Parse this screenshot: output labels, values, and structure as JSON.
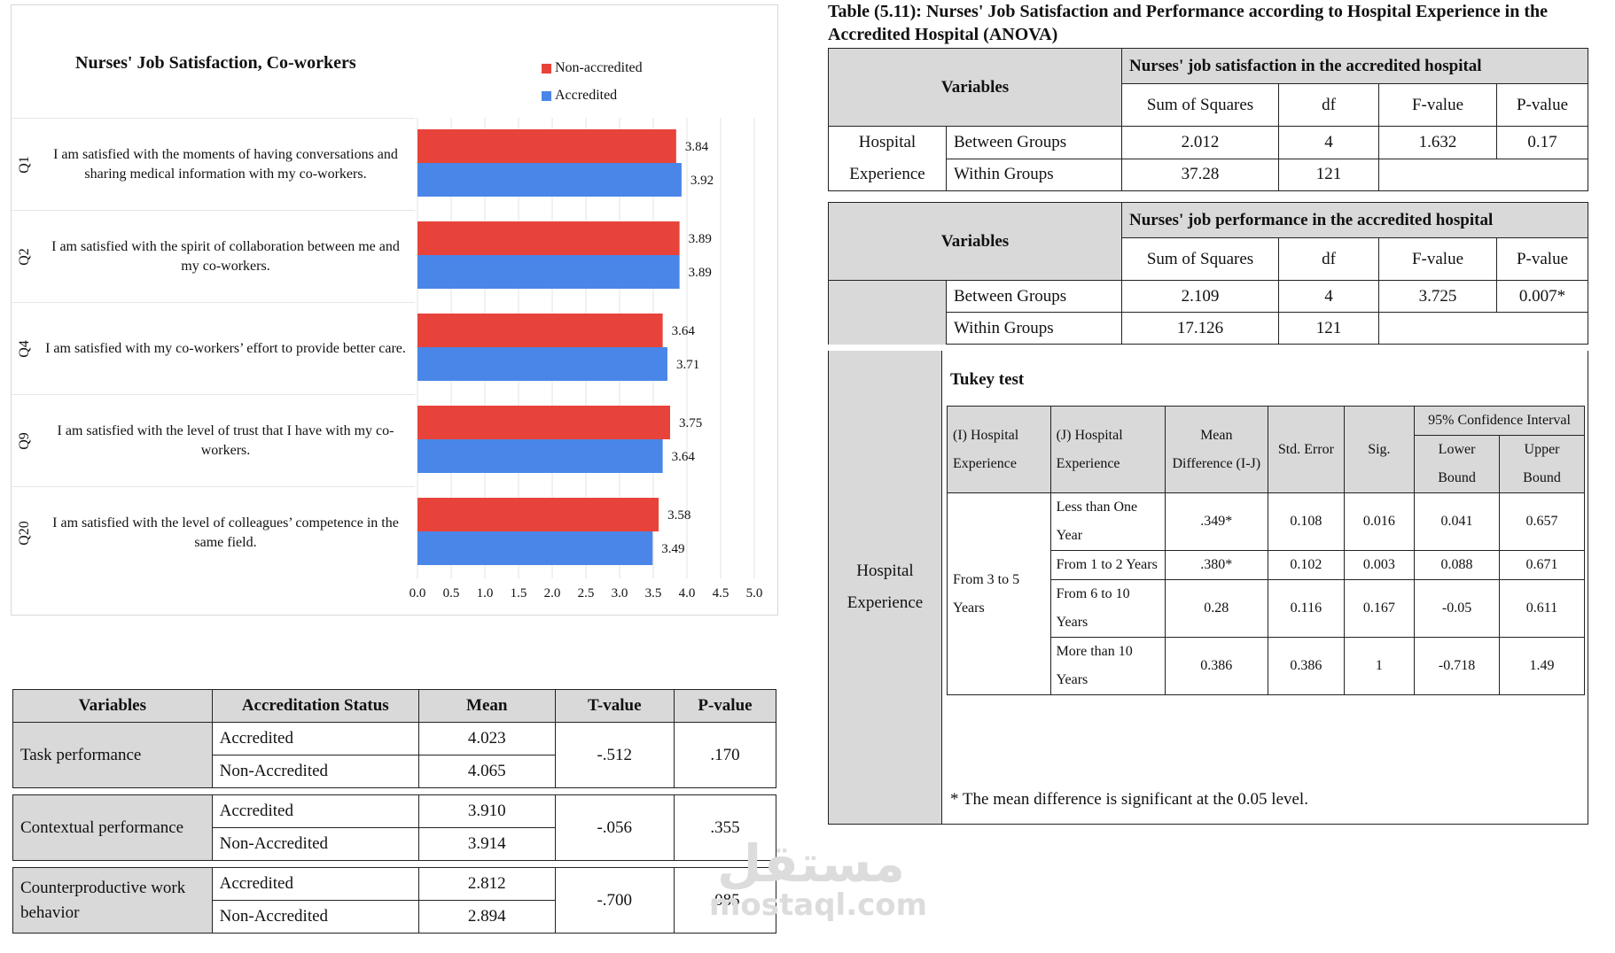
{
  "chart_data": {
    "type": "bar",
    "orientation": "horizontal",
    "title": "Nurses' Job Satisfaction, Co-workers",
    "categories": [
      "Q1",
      "Q2",
      "Q4",
      "Q9",
      "Q20"
    ],
    "category_texts": [
      "I am satisfied with the moments of having conversations and sharing medical information with my co-workers.",
      "I am satisfied with the spirit of collaboration between me and my co-workers.",
      "I am satisfied with my co-workers’ effort to provide better care.",
      "I am satisfied with the level of trust that I have with my co-workers.",
      "I am satisfied with the level of colleagues’ competence in the same field."
    ],
    "series": [
      {
        "name": "Non-accredited",
        "color": "#e8433a",
        "values": [
          3.84,
          3.89,
          3.64,
          3.75,
          3.58
        ],
        "labels": [
          "3.84",
          "3.89",
          "3.64",
          "3.75",
          "3.58"
        ]
      },
      {
        "name": "Accredited",
        "color": "#4a86e8",
        "values": [
          3.92,
          3.89,
          3.71,
          3.64,
          3.49
        ],
        "labels": [
          "3.92",
          "3.89",
          "3.71",
          "3.64",
          "3.49"
        ]
      }
    ],
    "xlim": [
      0,
      5
    ],
    "xticks": [
      "0.0",
      "0.5",
      "1.0",
      "1.5",
      "2.0",
      "2.5",
      "3.0",
      "3.5",
      "4.0",
      "4.5",
      "5.0"
    ],
    "legend_position": "top-right",
    "grid": true
  },
  "ttest": {
    "headers": [
      "Variables",
      "Accreditation Status",
      "Mean",
      "T-value",
      "P-value"
    ],
    "groups": [
      {
        "variable": "Task performance",
        "rows": [
          {
            "status": "Accredited",
            "mean": "4.023"
          },
          {
            "status": "Non-Accredited",
            "mean": "4.065"
          }
        ],
        "t": "-.512",
        "p": ".170"
      },
      {
        "variable": "Contextual performance",
        "rows": [
          {
            "status": "Accredited",
            "mean": "3.910"
          },
          {
            "status": "Non-Accredited",
            "mean": "3.914"
          }
        ],
        "t": "-.056",
        "p": ".355"
      },
      {
        "variable": "Counterproductive work behavior",
        "rows": [
          {
            "status": "Accredited",
            "mean": "2.812"
          },
          {
            "status": "Non-Accredited",
            "mean": "2.894"
          }
        ],
        "t": "-.700",
        "p": ".085"
      }
    ]
  },
  "anova": {
    "title": "Table (5.11): Nurses' Job Satisfaction and Performance according to Hospital Experience in the Accredited Hospital (ANOVA)",
    "variables_label": "Variables",
    "cols": [
      "Sum of Squares",
      "df",
      "F-value",
      "P-value"
    ],
    "block1": {
      "heading": "Nurses' job satisfaction in the accredited hospital",
      "factor": "Hospital Experience",
      "between": {
        "label": "Between Groups",
        "ss": "2.012",
        "df": "4",
        "f": "1.632",
        "p": "0.17"
      },
      "within": {
        "label": "Within Groups",
        "ss": "37.28",
        "df": "121"
      }
    },
    "block2": {
      "heading": "Nurses' job performance in the accredited hospital",
      "factor": "Hospital Experience",
      "between": {
        "label": "Between Groups",
        "ss": "2.109",
        "df": "4",
        "f": "3.725",
        "p": "0.007*"
      },
      "within": {
        "label": "Within Groups",
        "ss": "17.126",
        "df": "121"
      }
    },
    "tukey": {
      "heading": "Tukey test",
      "h_i": "(I) Hospital Experience",
      "h_j": "(J) Hospital Experience",
      "h_md": "Mean Difference (I-J)",
      "h_se": "Std. Error",
      "h_sig": "Sig.",
      "h_ci": "95% Confidence Interval",
      "h_lo": "Lower Bound",
      "h_up": "Upper Bound",
      "i_value": "From 3 to 5 Years",
      "rows": [
        {
          "j": "Less than One Year",
          "md": ".349*",
          "se": "0.108",
          "sig": "0.016",
          "lo": "0.041",
          "up": "0.657"
        },
        {
          "j": "From 1 to 2 Years",
          "md": ".380*",
          "se": "0.102",
          "sig": "0.003",
          "lo": "0.088",
          "up": "0.671"
        },
        {
          "j": "From 6 to 10 Years",
          "md": "0.28",
          "se": "0.116",
          "sig": "0.167",
          "lo": "-0.05",
          "up": "0.611"
        },
        {
          "j": "More than 10 Years",
          "md": "0.386",
          "se": "0.386",
          "sig": "1",
          "lo": "-0.718",
          "up": "1.49"
        }
      ],
      "footnote": "* The mean difference is significant at the 0.05 level."
    }
  },
  "watermark": {
    "arabic": "مستقل",
    "latin": "mostaql.com"
  }
}
